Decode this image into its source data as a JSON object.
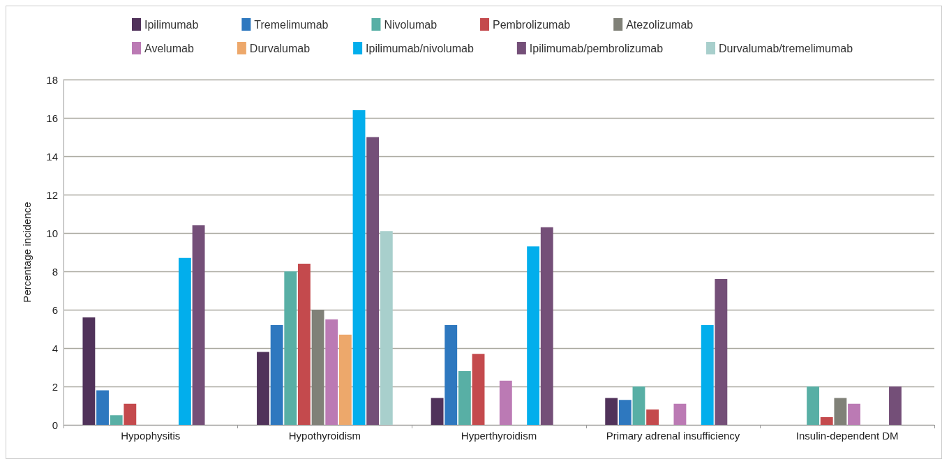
{
  "chart_data": {
    "type": "bar",
    "ylabel": "Percentage incidence",
    "categories": [
      "Hypophysitis",
      "Hypothyroidism",
      "Hyperthyroidism",
      "Primary adrenal insufficiency",
      "Insulin-dependent DM"
    ],
    "series": [
      {
        "name": "Ipilimumab",
        "color": "#50325a",
        "values": [
          5.6,
          3.8,
          1.4,
          1.4,
          0
        ]
      },
      {
        "name": "Tremelimumab",
        "color": "#2e78bf",
        "values": [
          1.8,
          5.2,
          5.2,
          1.3,
          0
        ]
      },
      {
        "name": "Nivolumab",
        "color": "#58afa5",
        "values": [
          0.5,
          8.0,
          2.8,
          2.0,
          2.0
        ]
      },
      {
        "name": "Pembrolizumab",
        "color": "#c44a4d",
        "values": [
          1.1,
          8.4,
          3.7,
          0.8,
          0.4
        ]
      },
      {
        "name": "Atezolizumab",
        "color": "#808178",
        "values": [
          0,
          6.0,
          0,
          0,
          1.4
        ]
      },
      {
        "name": "Avelumab",
        "color": "#bb7ab4",
        "values": [
          0,
          5.5,
          2.3,
          1.1,
          1.1
        ]
      },
      {
        "name": "Durvalumab",
        "color": "#eda86b",
        "values": [
          0,
          4.7,
          0,
          0,
          0
        ]
      },
      {
        "name": "Ipilimumab/nivolumab",
        "color": "#02aeec",
        "values": [
          8.7,
          16.4,
          9.3,
          5.2,
          0
        ]
      },
      {
        "name": "Ipilimumab/pembrolizumab",
        "color": "#744f78",
        "values": [
          10.4,
          15.0,
          10.3,
          7.6,
          2.0
        ]
      },
      {
        "name": "Durvalumab/tremelimumab",
        "color": "#a8cfcc",
        "values": [
          0,
          10.1,
          0,
          0,
          0
        ]
      }
    ],
    "ylim": [
      0,
      18
    ],
    "yticks": [
      0,
      2,
      4,
      6,
      8,
      10,
      12,
      14,
      16,
      18
    ],
    "grid": "y",
    "legend": "top"
  }
}
